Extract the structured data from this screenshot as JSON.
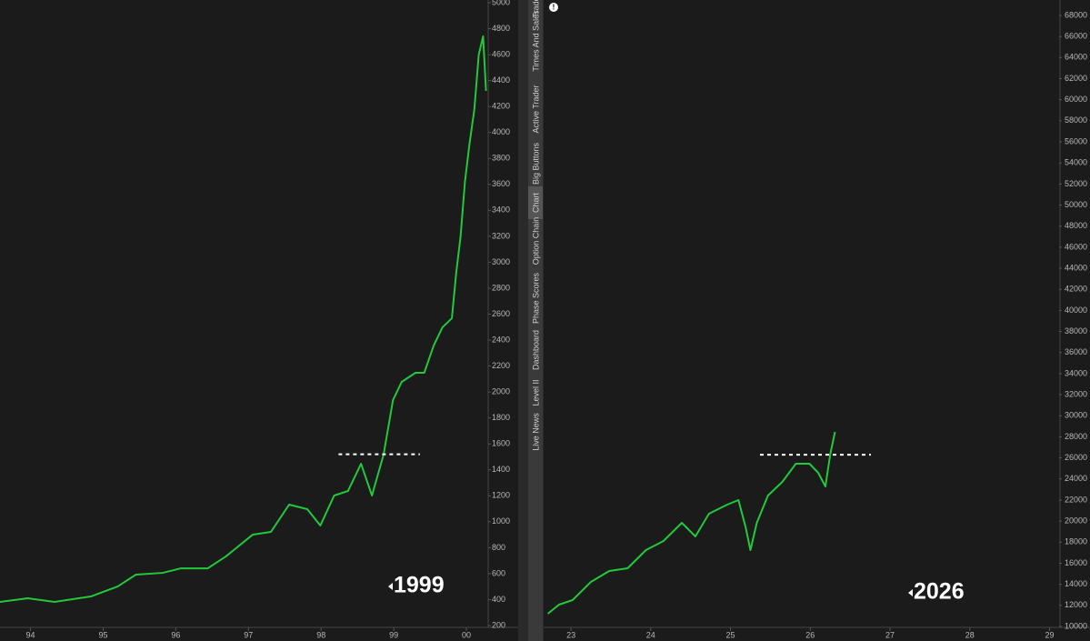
{
  "sidebar_tabs": [
    "Trade",
    "Times And Sales",
    "Active Trader",
    "Big Buttons",
    "Chart",
    "Option Chain",
    "Phase Scores",
    "Dashboard",
    "Level II",
    "Live News"
  ],
  "chart_data": [
    {
      "type": "line",
      "annotation": "1999",
      "x": [
        1993.58,
        1993.96,
        1994.33,
        1994.83,
        1995.2,
        1995.45,
        1995.82,
        1996.07,
        1996.44,
        1996.69,
        1997.06,
        1997.31,
        1997.56,
        1997.81,
        1997.99,
        1998.18,
        1998.37,
        1998.55,
        1998.7,
        1998.86,
        1998.99,
        1999.11,
        1999.3,
        1999.42,
        1999.55,
        1999.67,
        1999.8,
        1999.86,
        1999.92,
        1999.98,
        2000.04,
        2000.11,
        2000.17,
        2000.23,
        2000.27
      ],
      "series": [
        {
          "color": "#22c93a",
          "values": [
            382,
            410,
            382,
            424,
            501,
            592,
            606,
            641,
            641,
            733,
            901,
            922,
            1132,
            1097,
            971,
            1202,
            1237,
            1447,
            1202,
            1517,
            1938,
            2078,
            2148,
            2148,
            2358,
            2498,
            2568,
            2919,
            3199,
            3620,
            3900,
            4180,
            4600,
            4741,
            4321
          ]
        }
      ],
      "xlim": [
        1993.58,
        2000.3
      ],
      "ylim": [
        200,
        5000
      ],
      "xticks": [
        {
          "value": 1994,
          "label": "94"
        },
        {
          "value": 1995,
          "label": "95"
        },
        {
          "value": 1996,
          "label": "96"
        },
        {
          "value": 1997,
          "label": "97"
        },
        {
          "value": 1998,
          "label": "98"
        },
        {
          "value": 1999,
          "label": "99"
        },
        {
          "value": 2000,
          "label": "00"
        }
      ],
      "yticks": [
        200,
        400,
        600,
        800,
        1000,
        1200,
        1400,
        1600,
        1800,
        2000,
        2200,
        2400,
        2600,
        2800,
        3000,
        3200,
        3400,
        3600,
        3800,
        4000,
        4200,
        4400,
        4600,
        4800,
        5000
      ],
      "reference_line": {
        "value": 1520,
        "x": [
          1998.24,
          1999.36
        ]
      }
    },
    {
      "type": "line",
      "annotation": "2026",
      "x": [
        2022.71,
        2022.85,
        2023.02,
        2023.25,
        2023.48,
        2023.71,
        2023.94,
        2024.16,
        2024.39,
        2024.56,
        2024.73,
        2024.96,
        2025.1,
        2025.19,
        2025.25,
        2025.33,
        2025.47,
        2025.65,
        2025.82,
        2025.99,
        2026.1,
        2026.19,
        2026.25,
        2026.31
      ],
      "series": [
        {
          "color": "#22c93a",
          "values": [
            11208,
            12072,
            12503,
            14230,
            15265,
            15524,
            17250,
            18113,
            19839,
            18545,
            20702,
            21565,
            21997,
            19407,
            17250,
            19839,
            22428,
            23722,
            25449,
            25449,
            24586,
            23292,
            26312,
            28470
          ]
        }
      ],
      "xlim": [
        2022.68,
        2029.12
      ],
      "ylim": [
        10000,
        68000
      ],
      "xticks": [
        {
          "value": 2023,
          "label": "23"
        },
        {
          "value": 2024,
          "label": "24"
        },
        {
          "value": 2025,
          "label": "25"
        },
        {
          "value": 2026,
          "label": "26"
        },
        {
          "value": 2027,
          "label": "27"
        },
        {
          "value": 2028,
          "label": "28"
        },
        {
          "value": 2029,
          "label": "29"
        }
      ],
      "yticks": [
        10000,
        12000,
        14000,
        16000,
        18000,
        20000,
        22000,
        24000,
        26000,
        28000,
        30000,
        32000,
        34000,
        36000,
        38000,
        40000,
        42000,
        44000,
        46000,
        48000,
        50000,
        52000,
        54000,
        56000,
        58000,
        60000,
        62000,
        64000,
        66000,
        68000
      ],
      "reference_line": {
        "value": 26300,
        "x": [
          2025.37,
          2026.76
        ]
      }
    }
  ]
}
